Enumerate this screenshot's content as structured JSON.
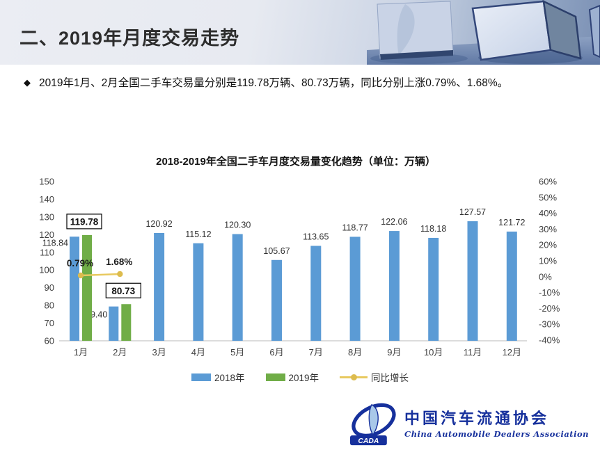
{
  "header": {
    "title": "二、2019年月度交易走势"
  },
  "summary": {
    "bullet": "◆",
    "text": "2019年1月、2月全国二手车交易量分别是119.78万辆、80.73万辆，同比分别上涨0.79%、1.68%。"
  },
  "chart_data": {
    "type": "bar",
    "title": "2018-2019年全国二手车月度交易量变化趋势（单位：万辆）",
    "categories": [
      "1月",
      "2月",
      "3月",
      "4月",
      "5月",
      "6月",
      "7月",
      "8月",
      "9月",
      "10月",
      "11月",
      "12月"
    ],
    "series": [
      {
        "name": "2018年",
        "kind": "bar",
        "color": "#5B9BD5",
        "values": [
          118.84,
          79.4,
          120.92,
          115.12,
          120.3,
          105.67,
          113.65,
          118.77,
          122.06,
          118.18,
          127.57,
          121.72
        ],
        "labels": [
          "118.84",
          "79.40",
          "120.92",
          "115.12",
          "120.30",
          "105.67",
          "113.65",
          "118.77",
          "122.06",
          "118.18",
          "127.57",
          "121.72"
        ]
      },
      {
        "name": "2019年",
        "kind": "bar",
        "color": "#70AD47",
        "values": [
          119.78,
          80.73
        ],
        "labels": [
          "119.78",
          "80.73"
        ],
        "label_style": "boxed"
      },
      {
        "name": "同比增长",
        "kind": "line",
        "axis": "right",
        "color": "#E8C95F",
        "marker_color": "#DDBC4E",
        "values": [
          0.79,
          1.68
        ],
        "labels": [
          "0.79%",
          "1.68%"
        ]
      }
    ],
    "left_axis": {
      "min": 60,
      "max": 150,
      "step": 10,
      "ticks": [
        "150",
        "140",
        "130",
        "120",
        "110",
        "100",
        "90",
        "80",
        "70",
        "60"
      ]
    },
    "right_axis": {
      "min": -40,
      "max": 60,
      "step": 10,
      "ticks": [
        "60%",
        "50%",
        "40%",
        "30%",
        "20%",
        "10%",
        "0%",
        "-10%",
        "-20%",
        "-30%",
        "-40%"
      ]
    },
    "grid": false,
    "legend_position": "bottom"
  },
  "logo": {
    "abbr": "CADA",
    "name_cn": "中国汽车流通协会",
    "name_en": "China Automobile Dealers Association"
  }
}
